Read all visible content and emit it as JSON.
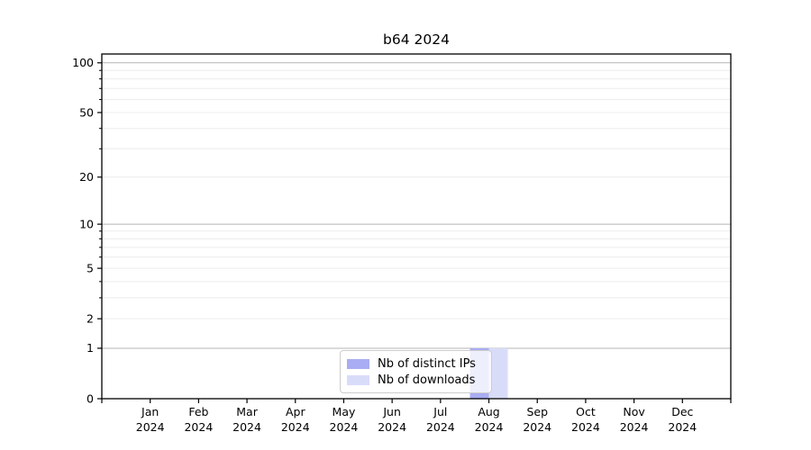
{
  "figure": {
    "background": "#ffffff"
  },
  "chart_data": {
    "type": "bar",
    "title": "b64 2024",
    "categories": [
      "Jan",
      "Feb",
      "Mar",
      "Apr",
      "May",
      "Jun",
      "Jul",
      "Aug",
      "Sep",
      "Oct",
      "Nov",
      "Dec"
    ],
    "category_year": "2024",
    "series": [
      {
        "name": "Nb of distinct IPs",
        "color": "#a9adf2",
        "values": [
          0,
          0,
          0,
          0,
          0,
          0,
          0,
          1,
          0,
          0,
          0,
          0
        ]
      },
      {
        "name": "Nb of downloads",
        "color": "#d9dcf9",
        "values": [
          0,
          0,
          0,
          0,
          0,
          0,
          0,
          1,
          0,
          0,
          0,
          0
        ]
      }
    ],
    "xlabel": "",
    "ylabel": "",
    "y_scale": "log1p",
    "ylim": [
      0,
      113
    ],
    "y_ticks_labeled": [
      0,
      1,
      2,
      5,
      10,
      20,
      50,
      100
    ],
    "y_gridlines_major": [
      1,
      10,
      100
    ],
    "y_gridlines_minor": [
      2,
      3,
      4,
      5,
      6,
      7,
      8,
      9,
      20,
      30,
      40,
      50,
      60,
      70,
      80,
      90
    ],
    "grid": true,
    "legend_position": "lower center"
  },
  "colors": {
    "axis_frame": "#000000",
    "tick_text": "#000000",
    "grid_major": "#b4b4b4",
    "grid_minor": "#ececec",
    "legend_border": "#cccccc"
  }
}
